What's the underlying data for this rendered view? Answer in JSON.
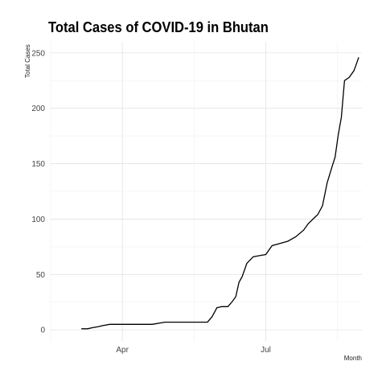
{
  "chart_data": {
    "type": "line",
    "title": "Total Cases of COVID-19 in Bhutan",
    "xlabel": "Month",
    "ylabel": "Total Cases",
    "x_tick_labels": [
      "Apr",
      "Jul"
    ],
    "x_tick_dates": [
      "2020-04-01",
      "2020-07-01"
    ],
    "xlim": [
      "2020-02-15",
      "2020-08-31"
    ],
    "y_ticks": [
      0,
      50,
      100,
      150,
      200,
      250
    ],
    "ylim": [
      -10,
      260
    ],
    "grid": true,
    "line_color": "#000000",
    "x": [
      "2020-03-06",
      "2020-03-10",
      "2020-03-13",
      "2020-03-17",
      "2020-03-20",
      "2020-03-24",
      "2020-03-28",
      "2020-04-02",
      "2020-04-10",
      "2020-04-20",
      "2020-04-28",
      "2020-05-08",
      "2020-05-18",
      "2020-05-25",
      "2020-05-28",
      "2020-05-31",
      "2020-06-03",
      "2020-06-07",
      "2020-06-10",
      "2020-06-12",
      "2020-06-14",
      "2020-06-16",
      "2020-06-19",
      "2020-06-23",
      "2020-06-27",
      "2020-07-01",
      "2020-07-05",
      "2020-07-10",
      "2020-07-15",
      "2020-07-20",
      "2020-07-25",
      "2020-07-28",
      "2020-07-31",
      "2020-08-03",
      "2020-08-06",
      "2020-08-09",
      "2020-08-12",
      "2020-08-14",
      "2020-08-16",
      "2020-08-18",
      "2020-08-20",
      "2020-08-23",
      "2020-08-26",
      "2020-08-29"
    ],
    "y": [
      1,
      1,
      2,
      3,
      4,
      5,
      5,
      5,
      5,
      5,
      7,
      7,
      7,
      7,
      12,
      20,
      21,
      21,
      26,
      30,
      43,
      48,
      60,
      66,
      67,
      68,
      76,
      78,
      80,
      84,
      90,
      96,
      100,
      104,
      112,
      133,
      147,
      156,
      176,
      192,
      225,
      228,
      234,
      246
    ]
  }
}
